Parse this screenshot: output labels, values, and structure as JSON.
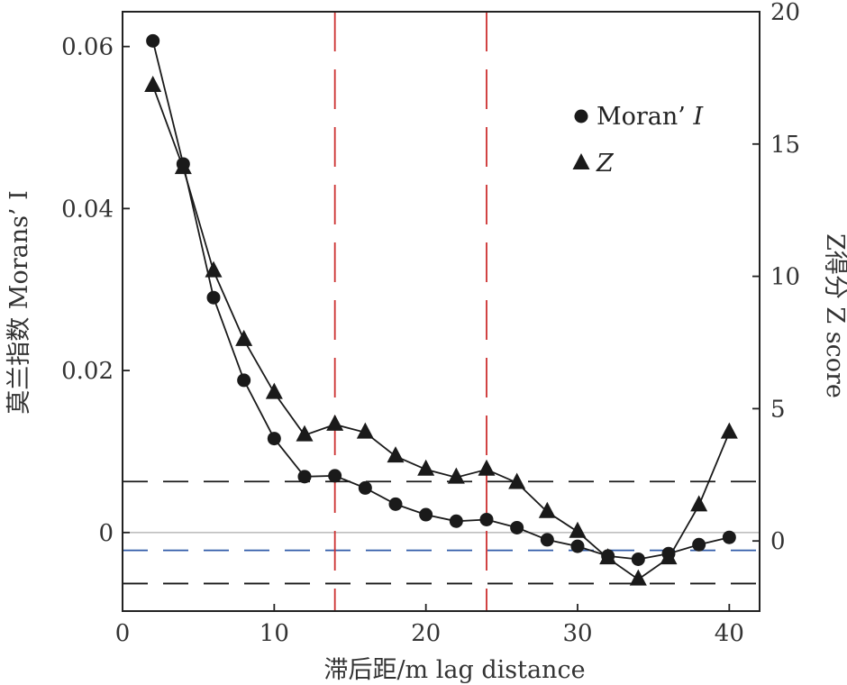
{
  "chart_data": {
    "type": "line",
    "xlabel": "滞后距/m lag distance",
    "ylabel_left": "莫兰指数 Morans’ I",
    "ylabel_right": "Z得分 Z score",
    "x_ticks": [
      "0",
      "10",
      "20",
      "30",
      "40"
    ],
    "y_left_ticks": [
      "0",
      "0.02",
      "0.04",
      "0.06"
    ],
    "y_right_ticks": [
      "0",
      "5",
      "10",
      "15",
      "20"
    ],
    "xlim": [
      0,
      42
    ],
    "ylim_left": [
      -0.0097,
      0.0643
    ],
    "ylim_right": [
      -2.65,
      20
    ],
    "x": [
      2,
      4,
      6,
      8,
      10,
      12,
      14,
      16,
      18,
      20,
      22,
      24,
      26,
      28,
      30,
      32,
      34,
      36,
      38,
      40
    ],
    "series": [
      {
        "name": "Moran’ I",
        "marker": "circle",
        "axis": "left",
        "values": [
          0.0607,
          0.0455,
          0.029,
          0.0188,
          0.0116,
          0.0069,
          0.007,
          0.0055,
          0.0035,
          0.0022,
          0.0014,
          0.0016,
          0.0006,
          -0.0009,
          -0.0017,
          -0.0029,
          -0.0033,
          -0.0026,
          -0.0015,
          -0.0006
        ]
      },
      {
        "name": "Z",
        "marker": "triangle",
        "axis": "right",
        "values": [
          17.2,
          14.1,
          10.2,
          7.6,
          5.6,
          4.0,
          4.4,
          4.1,
          3.2,
          2.7,
          2.4,
          2.7,
          2.2,
          1.1,
          0.35,
          -0.65,
          -1.45,
          -0.65,
          1.35,
          4.1
        ]
      }
    ],
    "reference_lines": {
      "vertical_x": [
        14,
        24
      ],
      "vertical_color": "#cc2f2f",
      "horizontal_left": [
        0.0063,
        -0.0063
      ],
      "horizontal_color": "#1a1a1a",
      "expected_left": -0.0022,
      "expected_color": "#2f5aa8",
      "zero_color": "#bfbfbf"
    },
    "legend": {
      "position": "top-right",
      "entries": [
        {
          "prefix": "Moran’ ",
          "italic": "I"
        },
        {
          "prefix": "",
          "italic": "Z"
        }
      ]
    },
    "grid": false
  }
}
